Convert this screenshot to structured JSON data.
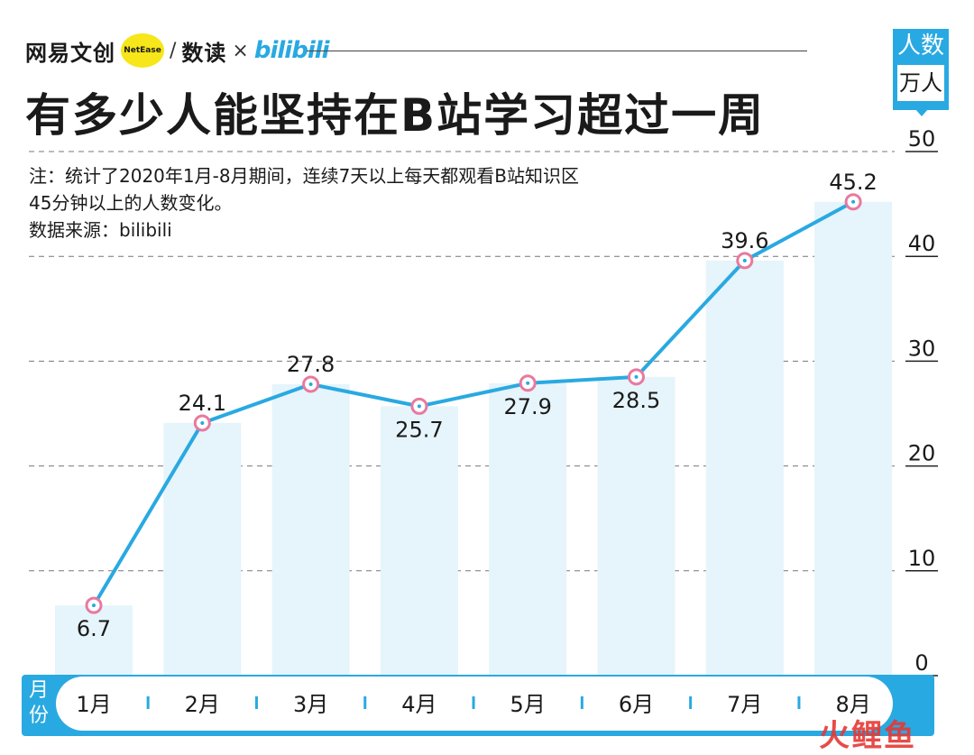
{
  "brand": {
    "primary": "网易文创",
    "badge": "NetEase",
    "slash": "/",
    "secondary": "数读",
    "times": "×",
    "partner": "bilibili"
  },
  "unit": {
    "line1": "人数",
    "line2": "万人"
  },
  "notes": [
    "注：统计了2020年1月-8月期间，连续7天以上每天都观看B站知识区",
    "45分钟以上的人数变化。",
    "数据来源：bilibili"
  ],
  "month_axis_label": "月份",
  "watermark": "火鲤鱼",
  "colors": {
    "accent": "#29a9e1",
    "bar": "#e6f4fb",
    "marker": "#e8799f"
  },
  "chart_data": {
    "type": "line",
    "title": "有多少人能坚持在B站学习超过一周",
    "categories": [
      "1月",
      "2月",
      "3月",
      "4月",
      "5月",
      "6月",
      "7月",
      "8月"
    ],
    "values": [
      6.7,
      24.1,
      27.8,
      25.7,
      27.9,
      28.5,
      39.6,
      45.2
    ],
    "value_labels": [
      "6.7",
      "24.1",
      "27.8",
      "25.7",
      "27.9",
      "28.5",
      "39.6",
      "45.2"
    ],
    "yticks": [
      "0",
      "10",
      "20",
      "30",
      "40",
      "50"
    ],
    "ylim": [
      0,
      50
    ],
    "grid": true,
    "bars_behind_line": true
  }
}
